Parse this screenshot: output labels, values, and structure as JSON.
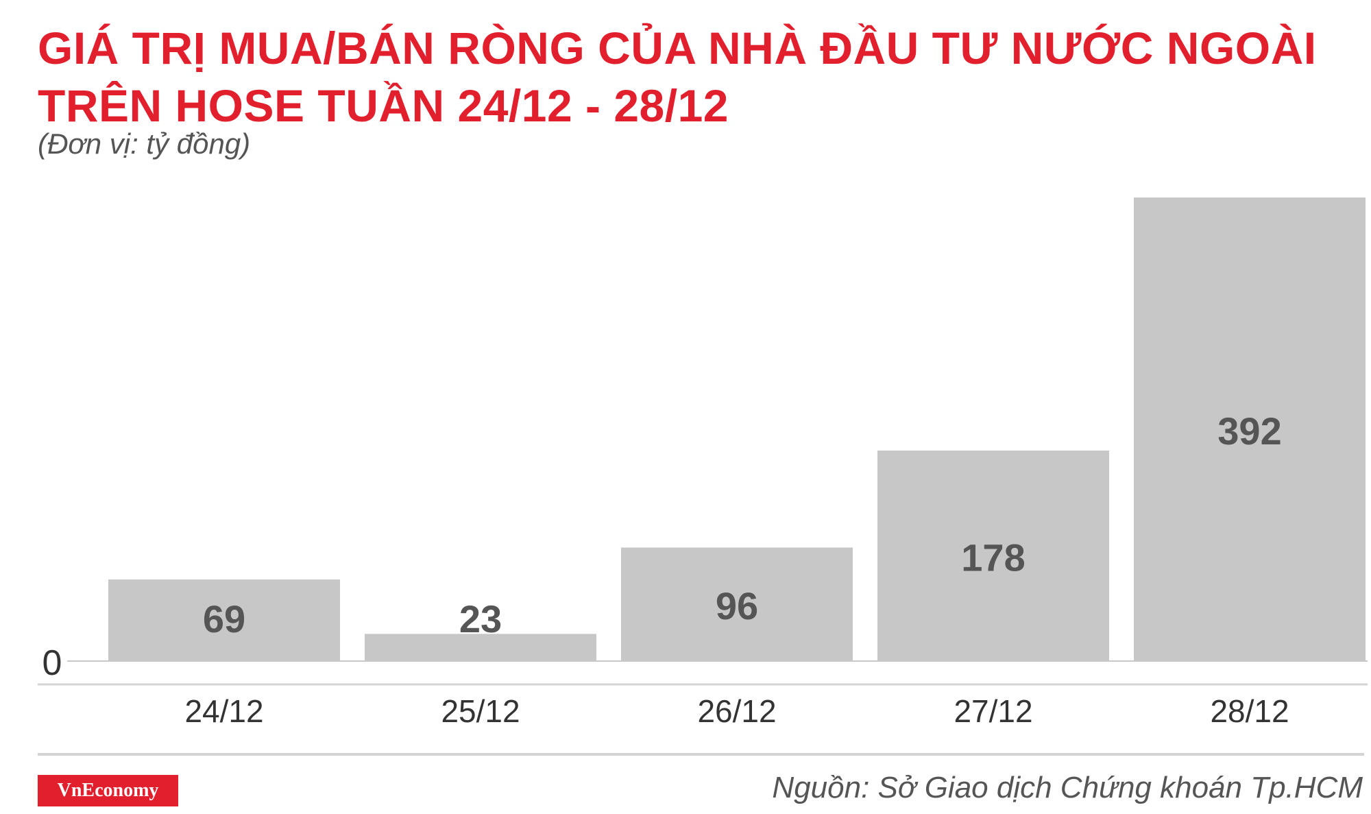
{
  "header": {
    "title_line1": "GIÁ TRỊ MUA/BÁN RÒNG CỦA NHÀ ĐẦU TƯ NƯỚC NGOÀI",
    "title_line2": "TRÊN HOSE TUẦN 24/12 - 28/12",
    "unit": "(Đơn vị: tỷ đồng)"
  },
  "footer": {
    "logo": "VnEconomy",
    "source": "Nguồn: Sở Giao dịch Chứng khoán Tp.HCM"
  },
  "colors": {
    "title": "#e21f2c",
    "bar": "#c8c7c7",
    "value_label": "#555555",
    "axis_line": "#d3d3d3"
  },
  "chart_data": {
    "type": "bar",
    "categories": [
      "24/12",
      "25/12",
      "26/12",
      "27/12",
      "28/12"
    ],
    "values": [
      69,
      23,
      96,
      178,
      392
    ],
    "ytick_labels": [
      "0"
    ],
    "ylim": [
      0,
      392
    ],
    "grid": false,
    "legend": "none",
    "data_labels": true
  }
}
